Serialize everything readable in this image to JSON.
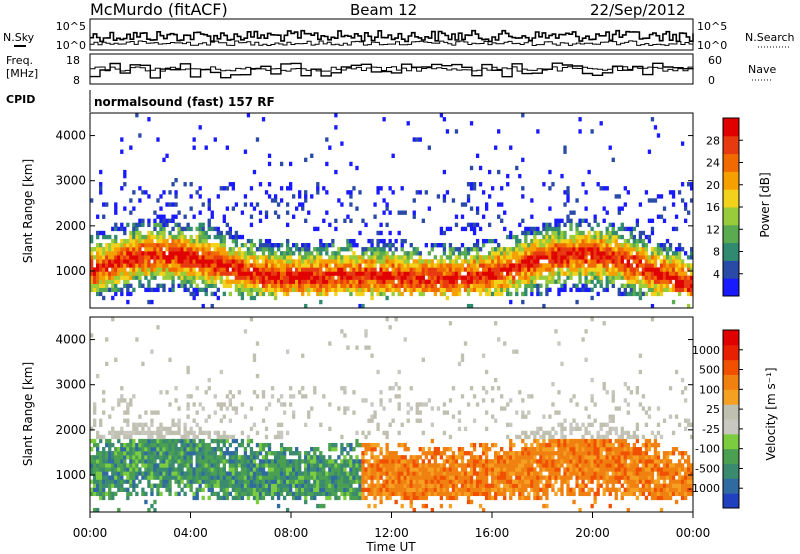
{
  "header": {
    "station": "McMurdo (fitACF)",
    "beam": "Beam 12",
    "date": "22/Sep/2012"
  },
  "side_labels": {
    "nsky": "N.Sky",
    "nsearch": "N.Search",
    "freq_line1": "Freq.",
    "freq_line2": "[MHz]",
    "nave": "Nave",
    "cpid": "CPID",
    "cpid_value": "normalsound (fast) 157 RF"
  },
  "chart_data": [
    {
      "type": "line",
      "name": "noise-panel",
      "left_ticks": [
        "10^5",
        "10^0"
      ],
      "right_ticks": [
        "10^5",
        "10^0"
      ]
    },
    {
      "type": "line",
      "name": "freq-nave-panel",
      "left_ticks": [
        "18",
        "8"
      ],
      "right_ticks": [
        "60",
        "0"
      ],
      "freq_ylim": [
        8,
        18
      ],
      "nave_ylim": [
        0,
        60
      ]
    },
    {
      "type": "heatmap",
      "name": "power",
      "ylabel": "Slant Range [km]",
      "ylim": [
        180,
        4500
      ],
      "yticks": [
        1000,
        2000,
        3000,
        4000
      ],
      "xlim": [
        0,
        24
      ],
      "colorbar": {
        "label": "Power [dB]",
        "ticks": [
          "28",
          "24",
          "20",
          "16",
          "12",
          "8",
          "4"
        ],
        "colors": [
          "#1a1aff",
          "#2a4aa8",
          "#2f8a70",
          "#5aaa50",
          "#99cc3a",
          "#f2d21a",
          "#f5a000",
          "#f06a00",
          "#e83a10",
          "#e00000"
        ]
      }
    },
    {
      "type": "heatmap",
      "name": "velocity",
      "ylabel": "Slant Range [km]",
      "ylim": [
        180,
        4500
      ],
      "yticks": [
        1000,
        2000,
        3000,
        4000
      ],
      "xlim": [
        0,
        24
      ],
      "xticks": [
        "00:00",
        "04:00",
        "08:00",
        "12:00",
        "16:00",
        "20:00",
        "00:00"
      ],
      "xlabel": "Time UT",
      "colorbar": {
        "label": "Velocity [m s⁻¹]",
        "ticks": [
          "1000",
          "500",
          "100",
          "25",
          "-25",
          "-100",
          "-500",
          "-1000"
        ],
        "colors": [
          "#2040c0",
          "#2f6aa0",
          "#3a8a70",
          "#4aa050",
          "#7ccc40",
          "#c8c8c0",
          "#c0c0b0",
          "#f5a020",
          "#f08010",
          "#f05000",
          "#e82000",
          "#e00000"
        ]
      }
    }
  ]
}
